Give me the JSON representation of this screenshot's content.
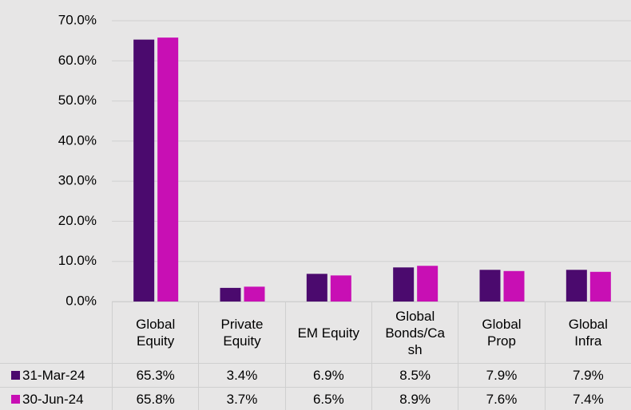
{
  "chart_data": {
    "type": "bar",
    "categories": [
      "Global Equity",
      "Private Equity",
      "EM Equity",
      "Global Bonds/Cash",
      "Global Prop",
      "Global Infra"
    ],
    "series": [
      {
        "name": "31-Mar-24",
        "color": "#4b0a6e",
        "values": [
          65.3,
          3.4,
          6.9,
          8.5,
          7.9,
          7.9
        ],
        "value_labels": [
          "65.3%",
          "3.4%",
          "6.9%",
          "8.5%",
          "7.9%",
          "7.9%"
        ]
      },
      {
        "name": "30-Jun-24",
        "color": "#c80fb4",
        "values": [
          65.8,
          3.7,
          6.5,
          8.9,
          7.6,
          7.4
        ],
        "value_labels": [
          "65.8%",
          "3.7%",
          "6.5%",
          "8.9%",
          "7.6%",
          "7.4%"
        ]
      }
    ],
    "ylim": [
      0,
      70
    ],
    "yticks": [
      {
        "value": 0,
        "label": "0.0%"
      },
      {
        "value": 10,
        "label": "10.0%"
      },
      {
        "value": 20,
        "label": "20.0%"
      },
      {
        "value": 30,
        "label": "30.0%"
      },
      {
        "value": 40,
        "label": "40.0%"
      },
      {
        "value": 50,
        "label": "50.0%"
      },
      {
        "value": 60,
        "label": "60.0%"
      },
      {
        "value": 70,
        "label": "70.0%"
      }
    ],
    "grid": true
  }
}
